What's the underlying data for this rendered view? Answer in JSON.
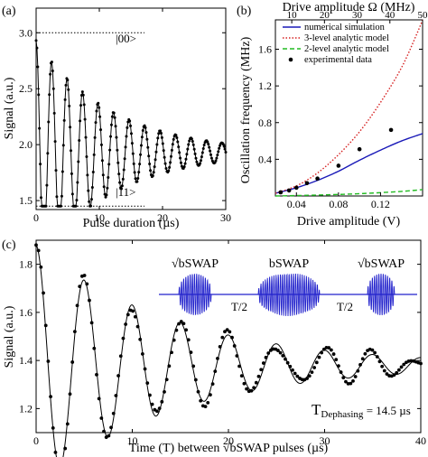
{
  "chart_data": [
    {
      "panel": "(a)",
      "type": "line",
      "xlabel": "Pulse duration (µs)",
      "ylabel": "Signal (a.u.)",
      "xlim": [
        0,
        30
      ],
      "ylim": [
        1.42,
        3.22
      ],
      "xticks": [
        "0",
        "10",
        "20",
        "30"
      ],
      "yticks": [
        "1.5",
        "2.0",
        "2.5",
        "3.0"
      ],
      "annotations": [
        "|00>",
        "|11>"
      ],
      "reference_lines": [
        3.0,
        1.45
      ],
      "series": [
        {
          "style": "line-with-markers",
          "color": "#000000",
          "model": {
            "offset": 1.93,
            "amplitude": 1.0,
            "period_us": 2.45,
            "decay_us": 12.0,
            "phase": 0.0
          },
          "x_range": [
            0,
            30
          ],
          "n_points": 230
        }
      ]
    },
    {
      "panel": "(b)",
      "type": "line",
      "xlabel": "Drive amplitude (V)",
      "ylabel": "Oscillation frequency (MHz)",
      "x2label": "Drive amplitude Ω (MHz)",
      "xlim": [
        0.02,
        0.16
      ],
      "ylim": [
        0,
        1.92
      ],
      "x2lim": [
        5,
        50
      ],
      "xticks": [
        "0.04",
        "0.08",
        "0.12"
      ],
      "yticks": [
        "0.4",
        "0.8",
        "1.2",
        "1.6"
      ],
      "x2ticks": [
        "10",
        "20",
        "30",
        "40",
        "50"
      ],
      "legend": {
        "position": "top-right",
        "entries": [
          "numerical simulation",
          "3-level analytic model",
          "2-level analytic model",
          "experimental data"
        ]
      },
      "series": [
        {
          "name": "numerical simulation",
          "color": "#1a1ab8",
          "style": "solid",
          "x": [
            0.02,
            0.04,
            0.06,
            0.08,
            0.1,
            0.12,
            0.14,
            0.16
          ],
          "y": [
            0.03,
            0.09,
            0.17,
            0.27,
            0.39,
            0.5,
            0.6,
            0.68
          ]
        },
        {
          "name": "3-level analytic model",
          "color": "#d62020",
          "style": "dotted",
          "x": [
            0.02,
            0.04,
            0.06,
            0.08,
            0.1,
            0.12,
            0.14,
            0.155,
            0.16
          ],
          "y": [
            0.03,
            0.11,
            0.25,
            0.45,
            0.7,
            1.02,
            1.4,
            1.78,
            1.92
          ]
        },
        {
          "name": "2-level analytic model",
          "color": "#22bb22",
          "style": "dashed",
          "x": [
            0.02,
            0.06,
            0.1,
            0.14,
            0.16
          ],
          "y": [
            0.0,
            0.01,
            0.025,
            0.05,
            0.07
          ]
        },
        {
          "name": "experimental data",
          "color": "#000000",
          "style": "markers",
          "x": [
            0.025,
            0.033,
            0.04,
            0.05,
            0.06,
            0.08,
            0.1,
            0.13
          ],
          "y": [
            0.04,
            0.06,
            0.09,
            0.14,
            0.19,
            0.33,
            0.51,
            0.72
          ]
        }
      ]
    },
    {
      "panel": "(c)",
      "type": "line",
      "xlabel": "Time (T) between √bSWAP pulses (µs)",
      "ylabel": "Signal (a.u.)",
      "xlim": [
        0,
        40
      ],
      "ylim": [
        1.1,
        1.9
      ],
      "xticks": [
        "0",
        "10",
        "20",
        "30",
        "40"
      ],
      "yticks": [
        "1.2",
        "1.4",
        "1.6",
        "1.8"
      ],
      "annotation": {
        "main": "T",
        "sub": "Dephasing",
        "rest": " = 14.5 µs"
      },
      "inset": {
        "labels": [
          "√bSWAP",
          "bSWAP",
          "√bSWAP"
        ],
        "gaps": [
          "T/2",
          "T/2"
        ],
        "color": "#2222cc"
      },
      "series": [
        {
          "style": "line",
          "color": "#000000",
          "model": {
            "offset": 1.38,
            "amplitude": 0.5,
            "period_us": 5.0,
            "decay_us": 14.5,
            "phase": 0.0
          },
          "x_range": [
            0,
            40
          ]
        },
        {
          "style": "markers",
          "color": "#000000",
          "model": {
            "offset": 1.38,
            "amplitude": 0.5,
            "period_us": 5.0,
            "decay_us": 14.5,
            "phase": 0.0
          },
          "x_range": [
            0,
            40
          ],
          "n_points": 160
        }
      ]
    }
  ]
}
